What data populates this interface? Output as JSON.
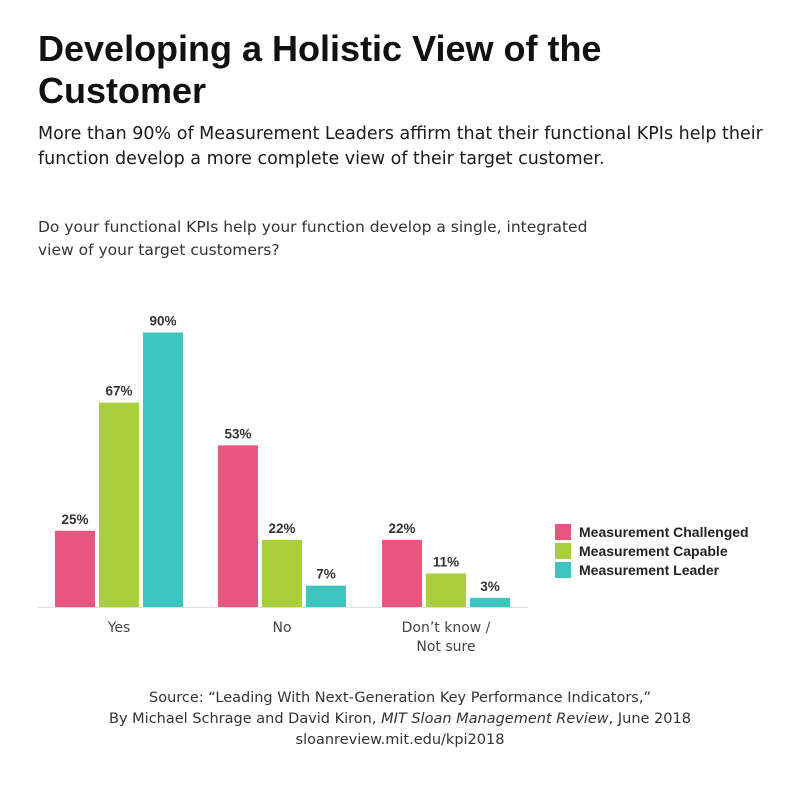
{
  "header": {
    "title": "Developing a Holistic View of the Customer",
    "subtitle": "More than 90% of Measurement Leaders affirm that their functional KPIs help their function develop a more complete view of their target customer.",
    "question": "Do your functional KPIs help your function develop a single, integrated view of your target customers?"
  },
  "source": {
    "line1": "Source: “Leading With Next-Generation Key Performance Indicators,”",
    "line2_prefix": "By Michael Schrage and David Kiron, ",
    "line2_italic": "MIT Sloan Management Review",
    "line2_suffix": ", June 2018",
    "line3": "sloanreview.mit.edu/kpi2018"
  },
  "chart_data": {
    "type": "bar",
    "categories": [
      [
        "Yes"
      ],
      [
        "No"
      ],
      [
        "Don’t know /",
        "Not sure"
      ]
    ],
    "series": [
      {
        "name": "Measurement Challenged",
        "color": "#e8557f",
        "values": [
          25,
          53,
          22
        ],
        "labels": [
          "25%",
          "53%",
          "22%"
        ]
      },
      {
        "name": "Measurement Capable",
        "color": "#a9cf3c",
        "values": [
          67,
          22,
          11
        ],
        "labels": [
          "67%",
          "22%",
          "11%"
        ]
      },
      {
        "name": "Measurement Leader",
        "color": "#3ec5bf",
        "values": [
          90,
          7,
          3
        ],
        "labels": [
          "90%",
          "7%",
          "3%"
        ]
      }
    ],
    "ylim": [
      0,
      100
    ],
    "legend_position": "right",
    "grid": false
  }
}
